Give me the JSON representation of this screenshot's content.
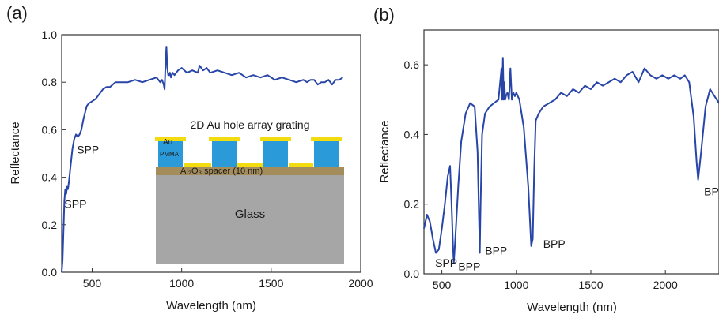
{
  "chart_data": [
    {
      "panel": "(a)",
      "type": "line",
      "xlabel": "Wavelength (nm)",
      "ylabel": "Reflectance",
      "xlim": [
        330,
        2000
      ],
      "ylim": [
        0.0,
        1.0
      ],
      "xticks": [
        500,
        1000,
        1500,
        2000
      ],
      "yticks": [
        0.0,
        0.2,
        0.4,
        0.6,
        0.8,
        1.0
      ],
      "color": "#2845a8",
      "series": [
        {
          "x": [
            330,
            335,
            340,
            345,
            350,
            355,
            360,
            365,
            370,
            380,
            390,
            400,
            410,
            420,
            430,
            440,
            450,
            460,
            470,
            480,
            500,
            520,
            540,
            560,
            580,
            600,
            630,
            660,
            700,
            740,
            780,
            820,
            860,
            880,
            890,
            900,
            905,
            910,
            915,
            920,
            925,
            930,
            935,
            940,
            950,
            960,
            980,
            1000,
            1030,
            1060,
            1090,
            1100,
            1120,
            1140,
            1160,
            1200,
            1240,
            1280,
            1320,
            1360,
            1400,
            1440,
            1480,
            1500,
            1520,
            1560,
            1600,
            1640,
            1680,
            1700,
            1720,
            1740,
            1760,
            1780,
            1800,
            1820,
            1840,
            1860,
            1880,
            1900
          ],
          "y": [
            0.0,
            0.05,
            0.18,
            0.3,
            0.35,
            0.33,
            0.36,
            0.35,
            0.38,
            0.45,
            0.52,
            0.56,
            0.58,
            0.57,
            0.58,
            0.6,
            0.64,
            0.67,
            0.7,
            0.71,
            0.72,
            0.73,
            0.75,
            0.77,
            0.78,
            0.78,
            0.8,
            0.8,
            0.8,
            0.81,
            0.8,
            0.81,
            0.82,
            0.8,
            0.81,
            0.79,
            0.77,
            0.88,
            0.95,
            0.86,
            0.83,
            0.83,
            0.84,
            0.82,
            0.84,
            0.83,
            0.85,
            0.86,
            0.84,
            0.85,
            0.84,
            0.87,
            0.85,
            0.86,
            0.84,
            0.85,
            0.84,
            0.83,
            0.84,
            0.82,
            0.83,
            0.82,
            0.83,
            0.82,
            0.81,
            0.82,
            0.81,
            0.8,
            0.81,
            0.8,
            0.81,
            0.81,
            0.79,
            0.8,
            0.8,
            0.81,
            0.79,
            0.81,
            0.81,
            0.82
          ]
        }
      ],
      "annotations": [
        {
          "text": "SPP",
          "x": 345,
          "y": 0.27
        },
        {
          "text": "SPP",
          "x": 415,
          "y": 0.5
        }
      ],
      "inset": {
        "title": "2D Au hole array grating",
        "layer_metal": "Au",
        "layer_resist": "PMMA",
        "layer_spacer": "Al₂O₃ spacer (10 nm)",
        "layer_substrate": "Glass",
        "colors": {
          "gold": "#f2dc10",
          "pmma": "#2a9ad8",
          "spacer": "#a58d5b",
          "glass": "#a6a6a6"
        }
      }
    },
    {
      "panel": "(b)",
      "type": "line",
      "xlabel": "Wavelength (nm)",
      "ylabel": "Reflectance",
      "xlim": [
        380,
        2360
      ],
      "ylim": [
        0.0,
        0.7
      ],
      "xticks": [
        500,
        1000,
        1500,
        2000
      ],
      "yticks": [
        0.0,
        0.2,
        0.4,
        0.6
      ],
      "color": "#2845a8",
      "series": [
        {
          "x": [
            380,
            400,
            420,
            440,
            460,
            480,
            500,
            520,
            540,
            555,
            565,
            575,
            580,
            590,
            610,
            630,
            660,
            690,
            720,
            740,
            750,
            755,
            760,
            770,
            790,
            820,
            850,
            880,
            900,
            905,
            910,
            915,
            920,
            925,
            930,
            940,
            950,
            960,
            970,
            980,
            990,
            1000,
            1020,
            1050,
            1080,
            1100,
            1110,
            1120,
            1130,
            1150,
            1180,
            1220,
            1260,
            1300,
            1340,
            1380,
            1420,
            1460,
            1500,
            1540,
            1580,
            1620,
            1660,
            1700,
            1740,
            1780,
            1820,
            1860,
            1900,
            1940,
            1980,
            2020,
            2060,
            2100,
            2130,
            2160,
            2190,
            2210,
            2220,
            2240,
            2270,
            2300,
            2330,
            2360
          ],
          "y": [
            0.13,
            0.17,
            0.15,
            0.1,
            0.06,
            0.07,
            0.13,
            0.2,
            0.28,
            0.31,
            0.2,
            0.08,
            0.03,
            0.1,
            0.25,
            0.38,
            0.46,
            0.49,
            0.48,
            0.35,
            0.15,
            0.06,
            0.2,
            0.4,
            0.46,
            0.48,
            0.49,
            0.5,
            0.59,
            0.5,
            0.62,
            0.5,
            0.55,
            0.5,
            0.51,
            0.52,
            0.5,
            0.59,
            0.5,
            0.52,
            0.51,
            0.52,
            0.5,
            0.42,
            0.25,
            0.08,
            0.1,
            0.3,
            0.44,
            0.46,
            0.48,
            0.49,
            0.5,
            0.52,
            0.51,
            0.53,
            0.52,
            0.54,
            0.53,
            0.55,
            0.54,
            0.55,
            0.56,
            0.55,
            0.57,
            0.58,
            0.55,
            0.59,
            0.57,
            0.56,
            0.57,
            0.56,
            0.57,
            0.56,
            0.57,
            0.55,
            0.45,
            0.32,
            0.27,
            0.35,
            0.48,
            0.53,
            0.51,
            0.49
          ]
        }
      ],
      "annotations": [
        {
          "text": "SPP",
          "x": 455,
          "y": 0.02
        },
        {
          "text": "BPP",
          "x": 610,
          "y": 0.01
        },
        {
          "text": "BPP",
          "x": 790,
          "y": 0.055
        },
        {
          "text": "BPP",
          "x": 1180,
          "y": 0.075
        },
        {
          "text": "BPP",
          "x": 2260,
          "y": 0.225
        }
      ]
    }
  ]
}
